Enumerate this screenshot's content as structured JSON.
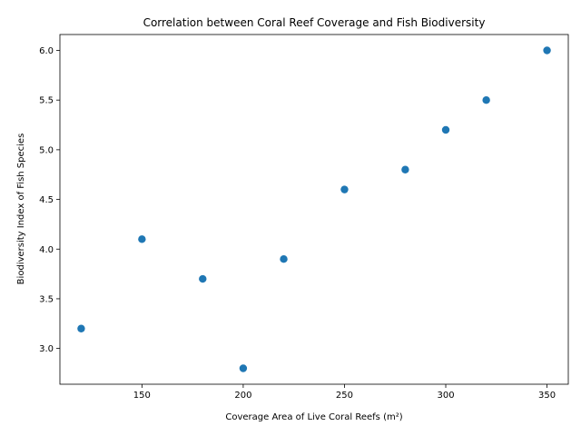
{
  "chart_data": {
    "type": "scatter",
    "title": "Correlation between Coral Reef Coverage and Fish Biodiversity",
    "xlabel": "Coverage Area of Live Coral Reefs (m²)",
    "ylabel": "Biodiversity Index of Fish Species",
    "xlim": [
      109.5,
      360.5
    ],
    "ylim": [
      2.64,
      6.16
    ],
    "xticks": [
      150,
      200,
      250,
      300,
      350
    ],
    "yticks": [
      3.0,
      3.5,
      4.0,
      4.5,
      5.0,
      5.5,
      6.0
    ],
    "xtick_labels": [
      "150",
      "200",
      "250",
      "300",
      "350"
    ],
    "ytick_labels": [
      "3.0",
      "3.5",
      "4.0",
      "4.5",
      "5.0",
      "5.5",
      "6.0"
    ],
    "grid": false,
    "legend": "none",
    "series": [
      {
        "color": "#1f77b4",
        "x": [
          120,
          150,
          180,
          200,
          220,
          250,
          280,
          300,
          320,
          350
        ],
        "y": [
          3.2,
          4.1,
          3.7,
          2.8,
          3.9,
          4.6,
          4.8,
          5.2,
          5.5,
          6.0
        ]
      }
    ]
  }
}
